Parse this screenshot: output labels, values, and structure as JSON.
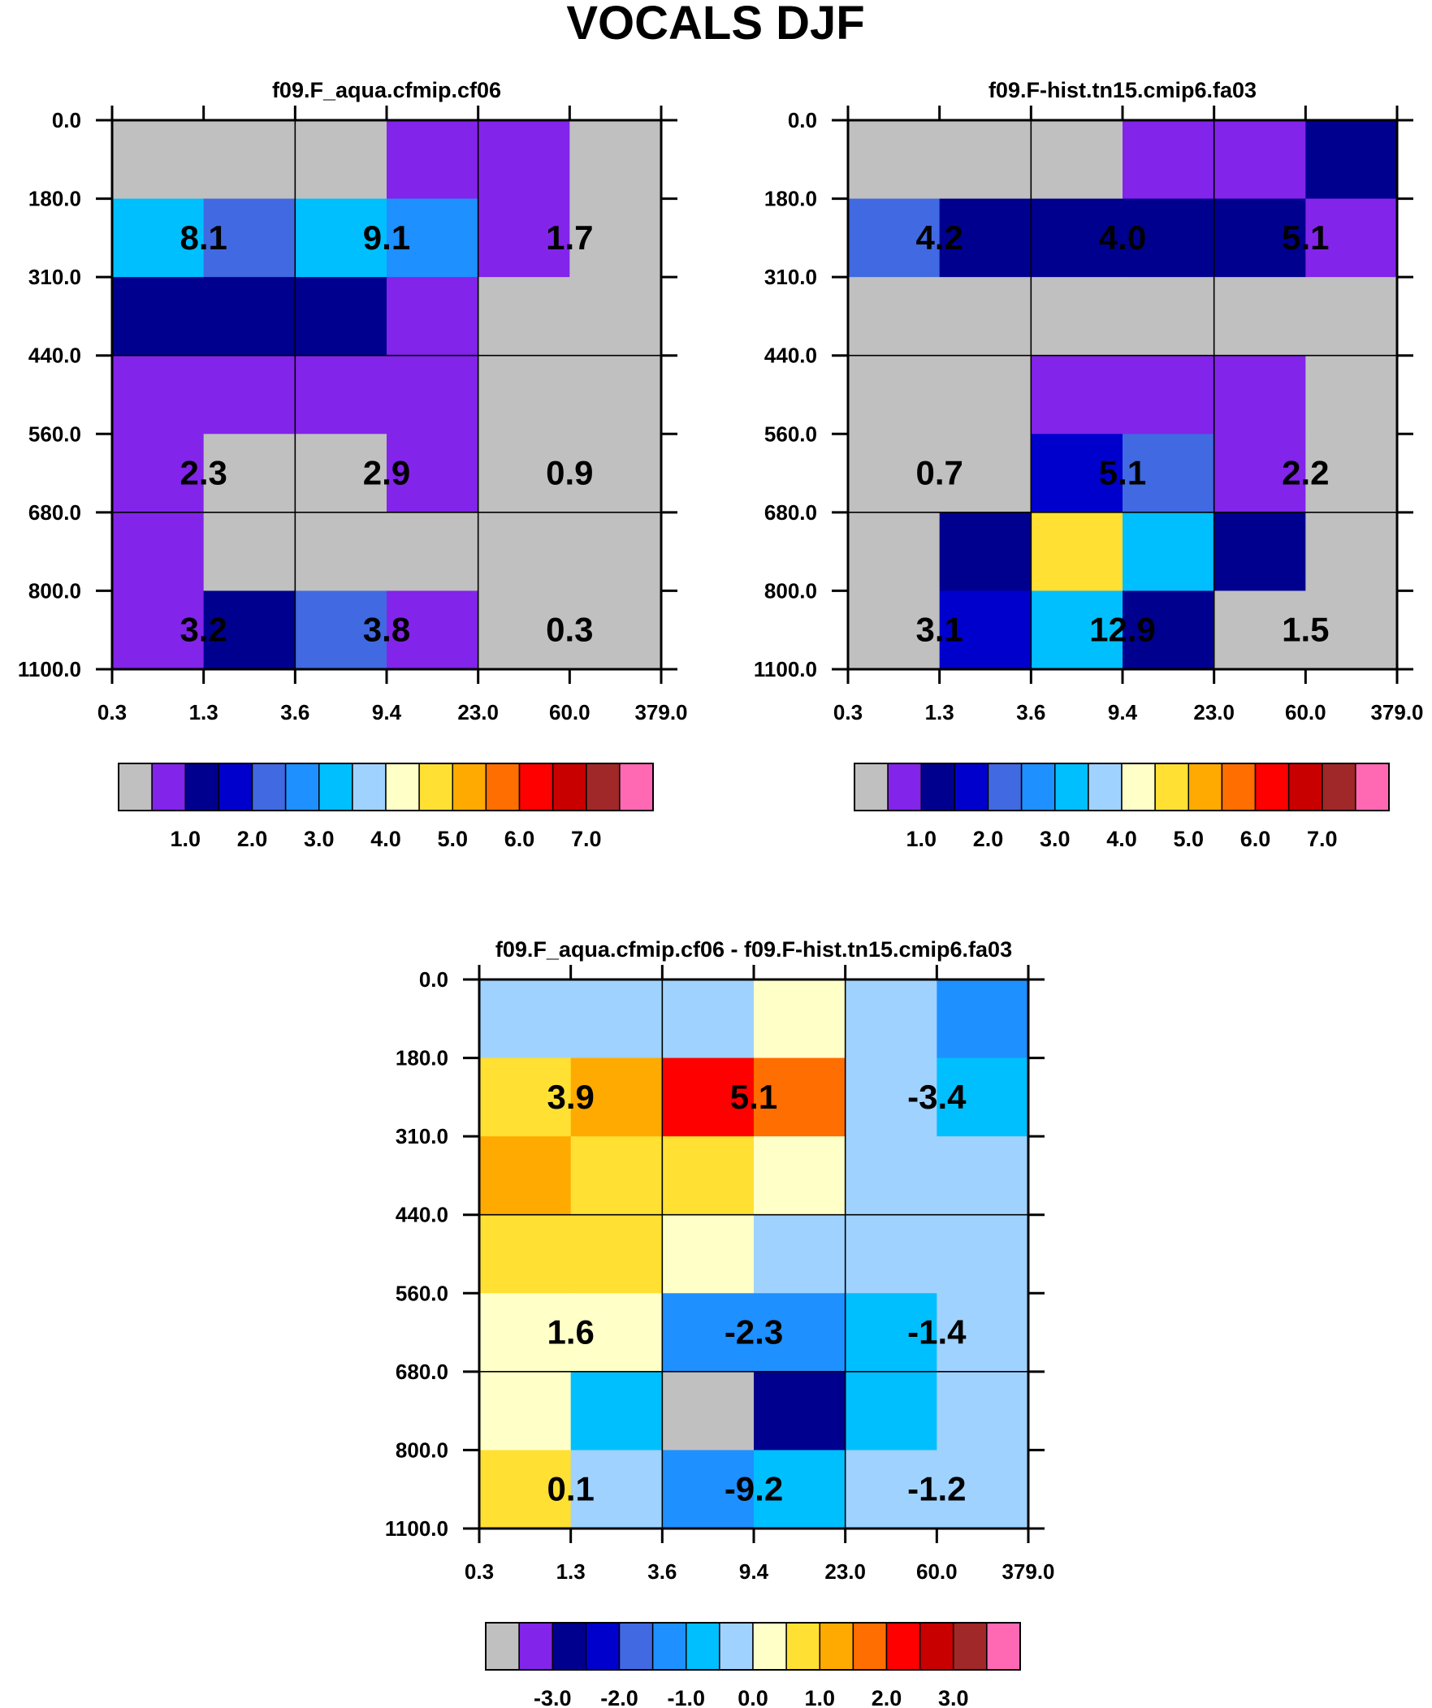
{
  "figure_title": "VOCALS DJF",
  "x_tick_labels": [
    "0.3",
    "1.3",
    "3.6",
    "9.4",
    "23.0",
    "60.0",
    "379.0"
  ],
  "y_tick_labels": [
    "0.0",
    "180.0",
    "310.0",
    "440.0",
    "560.0",
    "680.0",
    "800.0",
    "1100.0"
  ],
  "palette": {
    "c0": "#c0c0c0",
    "c1": "#8224e9",
    "c2": "#00008f",
    "c3": "#0000cd",
    "c4": "#4169e1",
    "c5": "#1e90ff",
    "c6": "#00bfff",
    "c7": "#a0d2ff",
    "c8": "#ffffc8",
    "c9": "#ffe033",
    "c10": "#ffaa00",
    "c11": "#ff6e00",
    "c12": "#ff0000",
    "c13": "#c80000",
    "c14": "#a02828",
    "c15": "#ff69b4"
  },
  "colorbar_colors": [
    "#c0c0c0",
    "#8224e9",
    "#00008f",
    "#0000cd",
    "#4169e1",
    "#1e90ff",
    "#00bfff",
    "#a0d2ff",
    "#ffffc8",
    "#ffe033",
    "#ffaa00",
    "#ff6e00",
    "#ff0000",
    "#c80000",
    "#a02828",
    "#ff69b4"
  ],
  "chart_data": [
    {
      "type": "heatmap",
      "title": "f09.F_aqua.cfmip.cf06",
      "x_bins": [
        "0.3",
        "1.3",
        "3.6",
        "9.4",
        "23.0",
        "60.0",
        "379.0"
      ],
      "y_bins": [
        "0.0",
        "180.0",
        "310.0",
        "440.0",
        "560.0",
        "680.0",
        "800.0",
        "1100.0"
      ],
      "cells": [
        [
          "c0",
          "c0",
          "c0",
          "c1",
          "c1",
          "c0"
        ],
        [
          "c6",
          "c4",
          "c6",
          "c5",
          "c1",
          "c0"
        ],
        [
          "c2",
          "c2",
          "c2",
          "c1",
          "c0",
          "c0"
        ],
        [
          "c1",
          "c1",
          "c1",
          "c1",
          "c0",
          "c0"
        ],
        [
          "c1",
          "c0",
          "c0",
          "c1",
          "c0",
          "c0"
        ],
        [
          "c1",
          "c0",
          "c0",
          "c0",
          "c0",
          "c0"
        ],
        [
          "c1",
          "c2",
          "c4",
          "c1",
          "c0",
          "c0"
        ]
      ],
      "block_values": [
        [
          "8.1",
          "9.1",
          "1.7"
        ],
        [
          "2.3",
          "2.9",
          "0.9"
        ],
        [
          "3.2",
          "3.8",
          "0.3"
        ]
      ],
      "colorbar_labels": [
        "1.0",
        "2.0",
        "3.0",
        "4.0",
        "5.0",
        "6.0",
        "7.0"
      ]
    },
    {
      "type": "heatmap",
      "title": "f09.F-hist.tn15.cmip6.fa03",
      "x_bins": [
        "0.3",
        "1.3",
        "3.6",
        "9.4",
        "23.0",
        "60.0",
        "379.0"
      ],
      "y_bins": [
        "0.0",
        "180.0",
        "310.0",
        "440.0",
        "560.0",
        "680.0",
        "800.0",
        "1100.0"
      ],
      "cells": [
        [
          "c0",
          "c0",
          "c0",
          "c1",
          "c1",
          "c2"
        ],
        [
          "c4",
          "c2",
          "c2",
          "c2",
          "c2",
          "c1"
        ],
        [
          "c0",
          "c0",
          "c0",
          "c0",
          "c0",
          "c0"
        ],
        [
          "c0",
          "c0",
          "c1",
          "c1",
          "c1",
          "c0"
        ],
        [
          "c0",
          "c0",
          "c3",
          "c4",
          "c1",
          "c0"
        ],
        [
          "c0",
          "c2",
          "c9",
          "c6",
          "c2",
          "c0"
        ],
        [
          "c0",
          "c3",
          "c6",
          "c2",
          "c0",
          "c0"
        ]
      ],
      "block_values": [
        [
          "4.2",
          "4.0",
          "5.1"
        ],
        [
          "0.7",
          "5.1",
          "2.2"
        ],
        [
          "3.1",
          "12.9",
          "1.5"
        ]
      ],
      "colorbar_labels": [
        "1.0",
        "2.0",
        "3.0",
        "4.0",
        "5.0",
        "6.0",
        "7.0"
      ]
    },
    {
      "type": "heatmap",
      "title": "f09.F_aqua.cfmip.cf06 - f09.F-hist.tn15.cmip6.fa03",
      "x_bins": [
        "0.3",
        "1.3",
        "3.6",
        "9.4",
        "23.0",
        "60.0",
        "379.0"
      ],
      "y_bins": [
        "0.0",
        "180.0",
        "310.0",
        "440.0",
        "560.0",
        "680.0",
        "800.0",
        "1100.0"
      ],
      "cells": [
        [
          "c7",
          "c7",
          "c7",
          "c8",
          "c7",
          "c5"
        ],
        [
          "c9",
          "c10",
          "c12",
          "c11",
          "c7",
          "c6"
        ],
        [
          "c10",
          "c9",
          "c9",
          "c8",
          "c7",
          "c7"
        ],
        [
          "c9",
          "c9",
          "c8",
          "c7",
          "c7",
          "c7"
        ],
        [
          "c8",
          "c8",
          "c5",
          "c5",
          "c6",
          "c7"
        ],
        [
          "c8",
          "c6",
          "c0",
          "c2",
          "c6",
          "c7"
        ],
        [
          "c9",
          "c7",
          "c5",
          "c6",
          "c7",
          "c7"
        ]
      ],
      "block_values": [
        [
          "3.9",
          "5.1",
          "-3.4"
        ],
        [
          "1.6",
          "-2.3",
          "-1.4"
        ],
        [
          "0.1",
          "-9.2",
          "-1.2"
        ]
      ],
      "colorbar_labels": [
        "-3.0",
        "-2.0",
        "-1.0",
        "0.0",
        "1.0",
        "2.0",
        "3.0"
      ]
    }
  ]
}
